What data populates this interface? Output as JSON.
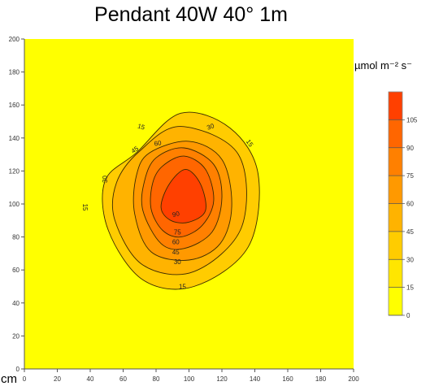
{
  "chart_data": {
    "type": "heatmap",
    "title": "Pendant 40W 40° 1m",
    "unit_label": "µmol m⁻² s⁻",
    "xlabel": "cm",
    "ylabel": "",
    "xlim": [
      0,
      200
    ],
    "ylim": [
      0,
      200
    ],
    "x_ticks": [
      0,
      20,
      40,
      60,
      80,
      100,
      120,
      140,
      160,
      180,
      200
    ],
    "y_ticks": [
      0,
      20,
      40,
      60,
      80,
      100,
      120,
      140,
      160,
      180,
      200
    ],
    "background_color": "#ffff00",
    "center": {
      "x": 95,
      "y": 104
    },
    "contours": [
      {
        "level": 15,
        "color": "#ffcc00",
        "points": [
          [
            68,
            131
          ],
          [
            95,
            155
          ],
          [
            125,
            146
          ],
          [
            142,
            118
          ],
          [
            136,
            74
          ],
          [
            103,
            50
          ],
          [
            72,
            54
          ],
          [
            51,
            84
          ],
          [
            49,
            114
          ]
        ]
      },
      {
        "level": 30,
        "color": "#ffb300",
        "points": [
          [
            70,
            132
          ],
          [
            95,
            147
          ],
          [
            130,
            130
          ],
          [
            132,
            86
          ],
          [
            103,
            59
          ],
          [
            72,
            63
          ],
          [
            55,
            90
          ],
          [
            56,
            113
          ]
        ]
      },
      {
        "level": 45,
        "color": "#ff9900",
        "points": [
          [
            76,
            131
          ],
          [
            100,
            138
          ],
          [
            120,
            127
          ],
          [
            126,
            99
          ],
          [
            119,
            76
          ],
          [
            100,
            66
          ],
          [
            77,
            71
          ],
          [
            67,
            94
          ],
          [
            68,
            117
          ]
        ]
      },
      {
        "level": 60,
        "color": "#ff8000",
        "points": [
          [
            80,
            128
          ],
          [
            97,
            134
          ],
          [
            115,
            124
          ],
          [
            120,
            104
          ],
          [
            114,
            83
          ],
          [
            97,
            73
          ],
          [
            83,
            76
          ],
          [
            72,
            96
          ],
          [
            73,
            114
          ]
        ]
      },
      {
        "level": 75,
        "color": "#ff6600",
        "points": [
          [
            84,
            123
          ],
          [
            97,
            129
          ],
          [
            110,
            121
          ],
          [
            115,
            102
          ],
          [
            108,
            87
          ],
          [
            95,
            80
          ],
          [
            84,
            84
          ],
          [
            77,
            97
          ],
          [
            78,
            113
          ]
        ]
      },
      {
        "level": 90,
        "color": "#ff4000",
        "points": [
          [
            88,
            112
          ],
          [
            98,
            121
          ],
          [
            107,
            112
          ],
          [
            110,
            96
          ],
          [
            100,
            89
          ],
          [
            89,
            90
          ],
          [
            83,
            98
          ]
        ]
      }
    ],
    "contour_labels": [
      {
        "text": "15",
        "x": 71,
        "y": 147,
        "angle": 15
      },
      {
        "text": "30",
        "x": 113,
        "y": 147,
        "angle": -20
      },
      {
        "text": "15",
        "x": 137,
        "y": 137,
        "angle": 55
      },
      {
        "text": "45",
        "x": 67,
        "y": 133,
        "angle": -35
      },
      {
        "text": "60",
        "x": 81,
        "y": 137,
        "angle": -10
      },
      {
        "text": "30",
        "x": 49,
        "y": 115,
        "angle": -90
      },
      {
        "text": "15",
        "x": 37,
        "y": 98,
        "angle": 90
      },
      {
        "text": "90",
        "x": 92,
        "y": 94,
        "angle": -15
      },
      {
        "text": "75",
        "x": 93,
        "y": 83,
        "angle": 0
      },
      {
        "text": "60",
        "x": 92,
        "y": 77,
        "angle": 0
      },
      {
        "text": "45",
        "x": 92,
        "y": 71,
        "angle": 0
      },
      {
        "text": "30",
        "x": 93,
        "y": 65,
        "angle": 0
      },
      {
        "text": "15",
        "x": 96,
        "y": 50,
        "angle": 0
      }
    ],
    "colorbar": {
      "levels": [
        0,
        15,
        30,
        45,
        60,
        75,
        90,
        105,
        120
      ],
      "tick_labels": [
        "0",
        "15",
        "30",
        "45",
        "60",
        "75",
        "90",
        "105"
      ],
      "colors": [
        "#ffff00",
        "#ffe600",
        "#ffcc00",
        "#ffb300",
        "#ff9900",
        "#ff8000",
        "#ff6600",
        "#ff4000"
      ]
    }
  }
}
